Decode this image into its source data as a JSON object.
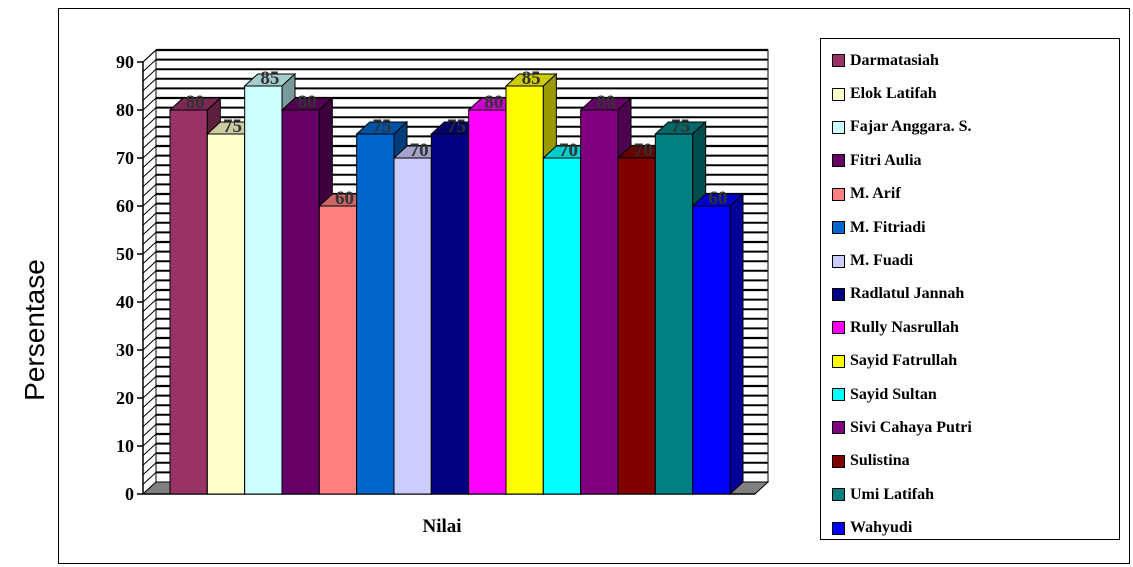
{
  "chart_data": {
    "type": "bar",
    "title": "",
    "xlabel": "Nilai",
    "ylabel": "Persentase",
    "ylim": [
      0,
      90
    ],
    "yticks": [
      "0",
      "10",
      "20",
      "30",
      "40",
      "50",
      "60",
      "70",
      "80",
      "90"
    ],
    "categories": [
      "Nilai"
    ],
    "grid": true,
    "legend_position": "right",
    "series": [
      {
        "name": "Darmatasiah",
        "values": [
          80
        ],
        "color": "#993366"
      },
      {
        "name": "Elok Latifah",
        "values": [
          75
        ],
        "color": "#FFFFCC"
      },
      {
        "name": "Fajar Anggara. S.",
        "values": [
          85
        ],
        "color": "#CCFFFF"
      },
      {
        "name": "Fitri Aulia",
        "values": [
          80
        ],
        "color": "#660066"
      },
      {
        "name": "M. Arif",
        "values": [
          60
        ],
        "color": "#FF8080"
      },
      {
        "name": "M. Fitriadi",
        "values": [
          75
        ],
        "color": "#0066CC"
      },
      {
        "name": "M. Fuadi",
        "values": [
          70
        ],
        "color": "#CCCCFF"
      },
      {
        "name": "Radlatul Jannah",
        "values": [
          75
        ],
        "color": "#000080"
      },
      {
        "name": "Rully Nasrullah",
        "values": [
          80
        ],
        "color": "#FF00FF"
      },
      {
        "name": "Sayid Fatrullah",
        "values": [
          85
        ],
        "color": "#FFFF00"
      },
      {
        "name": "Sayid Sultan",
        "values": [
          70
        ],
        "color": "#00FFFF"
      },
      {
        "name": "Sivi Cahaya Putri",
        "values": [
          80
        ],
        "color": "#800080"
      },
      {
        "name": "Sulistina",
        "values": [
          70
        ],
        "color": "#800000"
      },
      {
        "name": "Umi Latifah",
        "values": [
          75
        ],
        "color": "#008080"
      },
      {
        "name": "Wahyudi",
        "values": [
          60
        ],
        "color": "#0000FF"
      }
    ]
  }
}
